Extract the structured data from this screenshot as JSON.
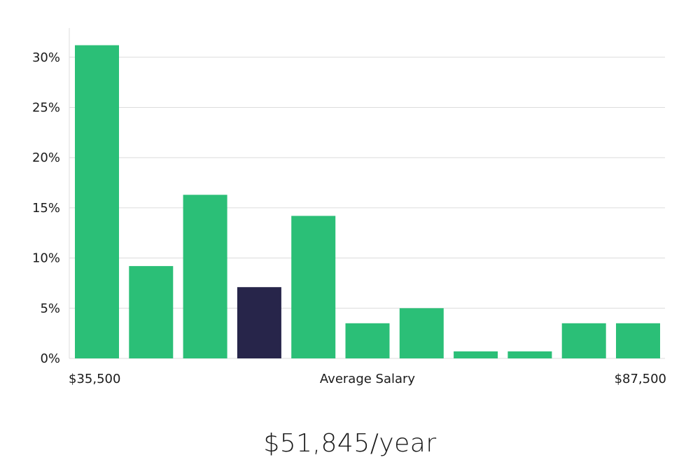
{
  "chart_data": {
    "type": "bar",
    "title": "",
    "xlabel": "Average Salary",
    "ylabel": "",
    "x_range_labels": {
      "start": "$35,500",
      "end": "$87,500"
    },
    "y_ticks": [
      "0%",
      "5%",
      "10%",
      "15%",
      "20%",
      "25%",
      "30%"
    ],
    "ylim": [
      0,
      33
    ],
    "grid": true,
    "values": [
      31.2,
      9.2,
      16.3,
      7.1,
      14.2,
      3.5,
      5.0,
      0.7,
      0.7,
      3.5,
      3.5
    ],
    "highlight_index": 3,
    "colors": {
      "bar": "#2bbf77",
      "highlight": "#27254a"
    }
  },
  "salary": {
    "display": "$51,845/year"
  }
}
